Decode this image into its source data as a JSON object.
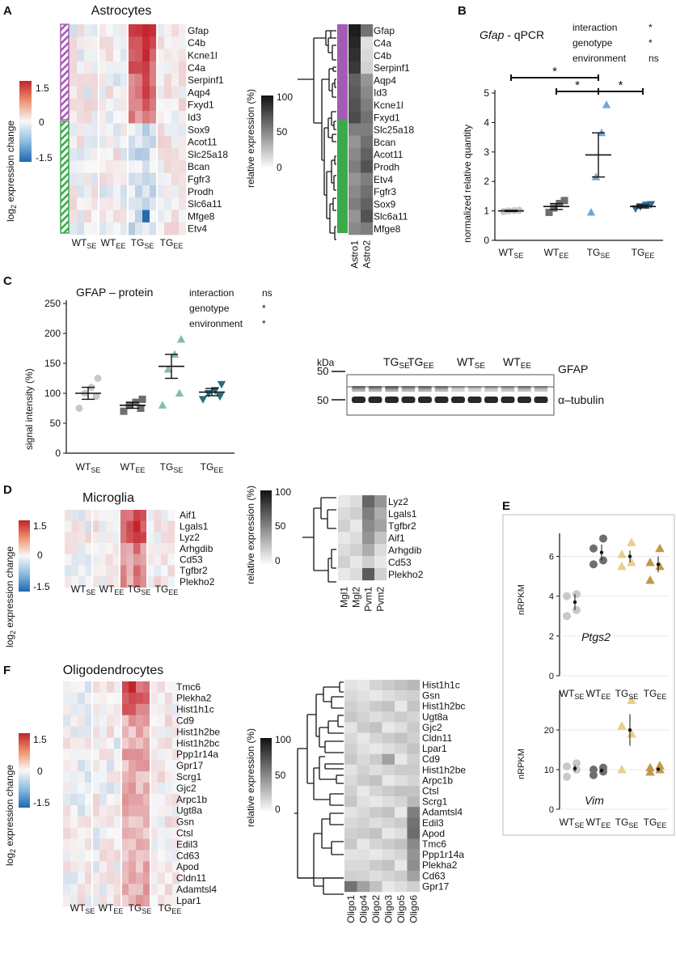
{
  "panel_labels": [
    "A",
    "B",
    "C",
    "D",
    "E",
    "F"
  ],
  "group_labels": [
    "WT",
    "WT",
    "TG",
    "TG"
  ],
  "group_subs": [
    "SE",
    "EE",
    "SE",
    "EE"
  ],
  "legend": {
    "fc_title_prefix": "log",
    "fc_title_sub": "2",
    "fc_title_suffix": " expression change",
    "fc_ticks": [
      "1.5",
      "0",
      "-1.5"
    ],
    "rel_title": "relative expression (%)",
    "rel_ticks": [
      "100",
      "50",
      "0"
    ]
  },
  "astro": {
    "title": "Astrocytes",
    "genes": [
      "Gfap",
      "C4b",
      "Kcne1l",
      "C4a",
      "Serpinf1",
      "Aqp4",
      "Fxyd1",
      "Id3",
      "Sox9",
      "Acot11",
      "Slc25a18",
      "Bcan",
      "Fgfr3",
      "Prodh",
      "Slc6a11",
      "Mfge8",
      "Etv4"
    ],
    "rel_genes": [
      "Gfap",
      "C4a",
      "C4b",
      "Serpinf1",
      "Aqp4",
      "Id3",
      "Kcne1l",
      "Fxyd1",
      "Slc25a18",
      "Bcan",
      "Acot11",
      "Prodh",
      "Etv4",
      "Fgfr3",
      "Sox9",
      "Slc6a11",
      "Mfge8"
    ],
    "rel_cols": [
      "Astro1",
      "Astro2"
    ]
  },
  "micro": {
    "title": "Microglia",
    "genes": [
      "Aif1",
      "Lgals1",
      "Lyz2",
      "Arhgdib",
      "Cd53",
      "Tgfbr2",
      "Plekho2"
    ],
    "rel_genes": [
      "Lyz2",
      "Lgals1",
      "Tgfbr2",
      "Aif1",
      "Arhgdib",
      "Cd53",
      "Plekho2"
    ],
    "rel_cols": [
      "Mgl1",
      "Mgl2",
      "Pvm1",
      "Pvm2"
    ]
  },
  "oligo": {
    "title": "Oligodendrocytes",
    "genes": [
      "Tmc6",
      "Plekha2",
      "Hist1h1c",
      "Cd9",
      "Hist1h2be",
      "Hist1h2bc",
      "Ppp1r14a",
      "Gpr17",
      "Scrg1",
      "Gjc2",
      "Arpc1b",
      "Ugt8a",
      "Gsn",
      "Ctsl",
      "Edil3",
      "Cd63",
      "Apod",
      "Cldn11",
      "Adamtsl4",
      "Lpar1"
    ],
    "rel_genes": [
      "Hist1h1c",
      "Gsn",
      "Hist1h2bc",
      "Ugt8a",
      "Gjc2",
      "Cldn11",
      "Lpar1",
      "Cd9",
      "Hist1h2be",
      "Arpc1b",
      "Ctsl",
      "Scrg1",
      "Adamtsl4",
      "Edil3",
      "Apod",
      "Tmc6",
      "Ppp1r14a",
      "Plekha2",
      "Cd63",
      "Gpr17"
    ],
    "rel_cols": [
      "Oligo1",
      "Oligo4",
      "Oligo2",
      "Oligo3",
      "Oligo5",
      "Oligo6"
    ]
  },
  "qpcr": {
    "title_gene": "Gfap",
    "title_rest": " - qPCR",
    "stats": [
      {
        "term": "interaction",
        "sig": "*"
      },
      {
        "term": "genotype",
        "sig": "*"
      },
      {
        "term": "environment",
        "sig": "ns"
      }
    ],
    "ylabel": "normalized relative quantity",
    "yticks": [
      "0",
      "1",
      "2",
      "3",
      "4",
      "5"
    ],
    "star": "*"
  },
  "protein": {
    "title": "GFAP – protein",
    "stats": [
      {
        "term": "interaction",
        "sig": "ns"
      },
      {
        "term": "genotype",
        "sig": "*"
      },
      {
        "term": "environment",
        "sig": "*"
      }
    ],
    "ylabel": "signal intensity (%)",
    "yticks": [
      "0",
      "50",
      "100",
      "150",
      "200",
      "250"
    ]
  },
  "blot": {
    "kda": "kDa",
    "marker": "50",
    "groups": [
      {
        "n": "TG",
        "s": "SE"
      },
      {
        "n": "TG",
        "s": "EE"
      },
      {
        "n": "WT",
        "s": "SE"
      },
      {
        "n": "WT",
        "s": "EE"
      }
    ],
    "bands": [
      "GFAP",
      "α–tubulin"
    ]
  },
  "nrpkm": {
    "ylabel": "nRPKM",
    "ptgs2": {
      "gene": "Ptgs2",
      "yticks": [
        "0",
        "2",
        "4",
        "6"
      ]
    },
    "vim": {
      "gene": "Vim",
      "yticks": [
        "0",
        "10",
        "20"
      ]
    }
  },
  "colors": {
    "wt_se": "#c8c8c8",
    "wt_ee": "#6e6e6e",
    "tg_se_b": "#6fa8d8",
    "tg_ee_b": "#2a6e9e",
    "tg_se_p": "#86bca9",
    "tg_ee_p": "#246e80",
    "tg_se_e": "#e9cf8a",
    "tg_ee_e": "#c2984a",
    "purple": "#a55bb5",
    "green": "#3aaa4a"
  },
  "chart_data": [
    {
      "type": "heatmap",
      "title": "Astrocytes",
      "value": "log2 expression change",
      "range": [
        -1.5,
        1.5
      ],
      "columns": [
        "WT SE",
        "WT EE",
        "TG SE",
        "TG EE"
      ],
      "rows": "astro.genes"
    },
    {
      "type": "heatmap",
      "title": "Astrocytes relative expression",
      "value": "relative expression (%)",
      "range": [
        0,
        100
      ],
      "columns": [
        "Astro1",
        "Astro2"
      ],
      "rows": "astro.rel_genes"
    },
    {
      "type": "scatter",
      "title": "Gfap - qPCR",
      "ylabel": "normalized relative quantity",
      "ylim": [
        0,
        5
      ],
      "categories": [
        "WT SE",
        "WT EE",
        "TG SE",
        "TG EE"
      ],
      "points": [
        [
          0.98,
          1.0,
          1.01,
          1.02
        ],
        [
          0.95,
          1.1,
          1.25,
          1.35
        ],
        [
          0.95,
          2.15,
          3.65,
          4.6
        ],
        [
          1.08,
          1.15,
          1.2,
          1.22
        ]
      ],
      "means": [
        1.0,
        1.15,
        2.9,
        1.15
      ],
      "sem": [
        0.02,
        0.1,
        0.75,
        0.05
      ],
      "significance": [
        {
          "from": 0,
          "to": 2,
          "label": "*"
        },
        {
          "from": 1,
          "to": 2,
          "label": "*"
        },
        {
          "from": 2,
          "to": 3,
          "label": "*"
        }
      ]
    },
    {
      "type": "scatter",
      "title": "GFAP – protein",
      "ylabel": "signal intensity (%)",
      "ylim": [
        0,
        250
      ],
      "categories": [
        "WT SE",
        "WT EE",
        "TG SE",
        "TG EE"
      ],
      "points": [
        [
          75,
          95,
          100,
          110,
          125
        ],
        [
          70,
          75,
          80,
          85,
          90
        ],
        [
          80,
          100,
          140,
          165,
          190
        ],
        [
          90,
          95,
          100,
          105,
          115
        ]
      ],
      "means": [
        100,
        80,
        145,
        102
      ],
      "sem": [
        10,
        5,
        20,
        6
      ]
    },
    {
      "type": "heatmap",
      "title": "Microglia",
      "value": "log2 expression change",
      "range": [
        -1.5,
        1.5
      ],
      "columns": [
        "WT SE",
        "WT EE",
        "TG SE",
        "TG EE"
      ],
      "rows": "micro.genes"
    },
    {
      "type": "heatmap",
      "title": "Microglia relative expression",
      "value": "relative expression (%)",
      "range": [
        0,
        100
      ],
      "columns": [
        "Mgl1",
        "Mgl2",
        "Pvm1",
        "Pvm2"
      ],
      "rows": "micro.rel_genes"
    },
    {
      "type": "scatter",
      "title": "Ptgs2",
      "ylabel": "nRPKM",
      "ylim": [
        0,
        7
      ],
      "categories": [
        "WT SE",
        "WT EE",
        "TG SE",
        "TG EE"
      ],
      "points": [
        [
          3.0,
          3.3,
          4.0,
          4.1
        ],
        [
          5.6,
          5.8,
          6.4,
          6.9
        ],
        [
          5.5,
          5.7,
          6.1,
          6.7
        ],
        [
          4.8,
          5.5,
          5.7,
          6.4
        ]
      ],
      "means": [
        3.7,
        6.2,
        6.0,
        5.6
      ],
      "sem": [
        0.4,
        0.4,
        0.3,
        0.4
      ]
    },
    {
      "type": "scatter",
      "title": "Vim",
      "ylabel": "nRPKM",
      "ylim": [
        0,
        29
      ],
      "categories": [
        "WT SE",
        "WT EE",
        "TG SE",
        "TG EE"
      ],
      "points": [
        [
          8.2,
          10.0,
          10.8,
          11.6
        ],
        [
          8.6,
          9.5,
          10.0,
          10.5
        ],
        [
          10.0,
          19.0,
          21.0,
          27.5
        ],
        [
          9.4,
          10.0,
          10.5,
          11.0
        ]
      ],
      "means": [
        10.3,
        9.8,
        20.0,
        10.1
      ],
      "sem": [
        0.8,
        0.5,
        4.0,
        0.4
      ]
    },
    {
      "type": "heatmap",
      "title": "Oligodendrocytes",
      "value": "log2 expression change",
      "range": [
        -1.5,
        1.5
      ],
      "columns": [
        "WT SE",
        "WT EE",
        "TG SE",
        "TG EE"
      ],
      "rows": "oligo.genes"
    },
    {
      "type": "heatmap",
      "title": "Oligodendrocytes relative expression",
      "value": "relative expression (%)",
      "range": [
        0,
        100
      ],
      "columns": [
        "Oligo1",
        "Oligo4",
        "Oligo2",
        "Oligo3",
        "Oligo5",
        "Oligo6"
      ],
      "rows": "oligo.rel_genes"
    }
  ]
}
